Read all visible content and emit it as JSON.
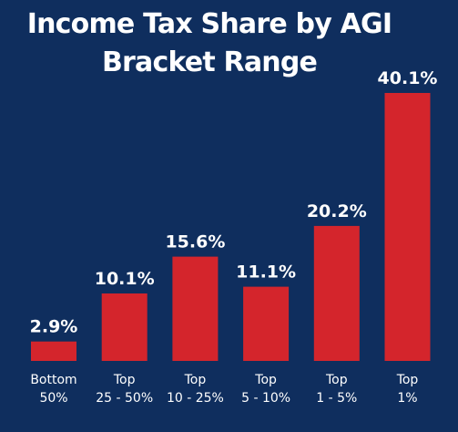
{
  "chart_data": {
    "type": "bar",
    "title_lines": [
      "Income Tax Share by AGI",
      "Bracket Range"
    ],
    "categories": [
      [
        "Bottom",
        "50%"
      ],
      [
        "Top",
        "25 - 50%"
      ],
      [
        "Top",
        "10 - 25%"
      ],
      [
        "Top",
        "5 - 10%"
      ],
      [
        "Top",
        "1 - 5%"
      ],
      [
        "Top",
        "1%"
      ]
    ],
    "values": [
      2.9,
      10.1,
      15.6,
      11.1,
      20.2,
      40.1
    ],
    "value_labels": [
      "2.9%",
      "10.1%",
      "15.6%",
      "11.1%",
      "20.2%",
      "40.1%"
    ],
    "ylim": [
      0,
      40.1
    ],
    "grid": false,
    "bar_color": "#d4252c",
    "background_color": "#0f2e5e",
    "text_color": "#ffffff"
  }
}
